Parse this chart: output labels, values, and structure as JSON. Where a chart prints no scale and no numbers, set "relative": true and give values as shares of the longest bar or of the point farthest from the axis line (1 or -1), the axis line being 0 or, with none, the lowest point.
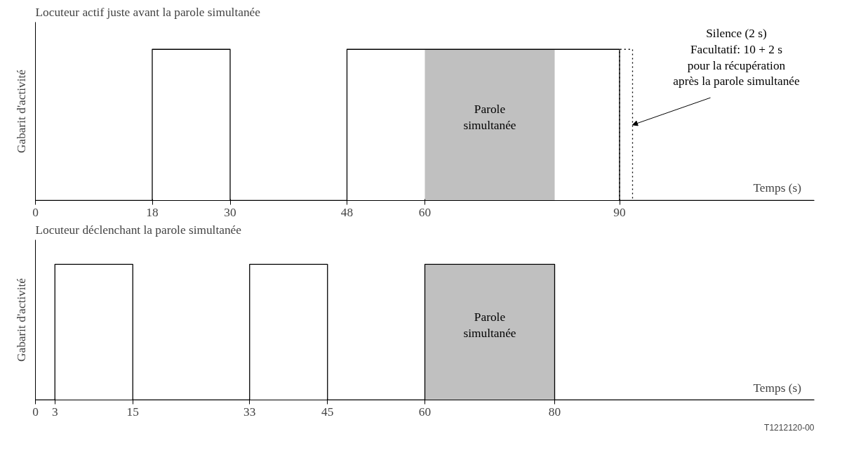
{
  "chart_data": [
    {
      "type": "step",
      "title": "Locuteur actif juste avant la parole simultanée",
      "xlabel": "Temps (s)",
      "ylabel": "Gabarit d'activité",
      "relative": true,
      "xlim": [
        0,
        120
      ],
      "xticks": [
        0,
        18,
        30,
        48,
        60,
        90
      ],
      "grid": false,
      "series": [
        {
          "color": "#000000",
          "x": [
            0,
            18,
            30,
            48,
            90,
            120
          ],
          "values": [
            0,
            1,
            0,
            1,
            0,
            0
          ]
        },
        {
          "color": "#000000",
          "line_style": "dotted",
          "x": [
            90,
            90,
            92
          ],
          "values": [
            0,
            1,
            0
          ]
        }
      ],
      "bands": [
        {
          "axis": "x",
          "from": 60,
          "to": 80,
          "label": "Parole\nsimultanée",
          "color": "#c0c0c0"
        }
      ],
      "annotations": [
        {
          "text": "Silence (2 s)\nFacultatif: 10 + 2 s\npour la récupération\naprès la parole simultanée",
          "x": 92,
          "y": 0.5
        }
      ]
    },
    {
      "type": "step",
      "title": "Locuteur déclenchant la parole simultanée",
      "xlabel": "Temps (s)",
      "ylabel": "Gabarit d'activité",
      "relative": true,
      "xlim": [
        0,
        120
      ],
      "xticks": [
        0,
        3,
        15,
        33,
        45,
        60,
        80
      ],
      "grid": false,
      "series": [
        {
          "color": "#000000",
          "x": [
            0,
            3,
            15,
            33,
            45,
            60,
            80,
            120
          ],
          "values": [
            0,
            1,
            0,
            1,
            0,
            1,
            0,
            0
          ]
        }
      ],
      "bands": [
        {
          "axis": "x",
          "from": 60,
          "to": 80,
          "label": "Parole\nsimultanée",
          "color": "#c0c0c0"
        }
      ],
      "annotations": [
        "T1212120-00"
      ]
    }
  ]
}
